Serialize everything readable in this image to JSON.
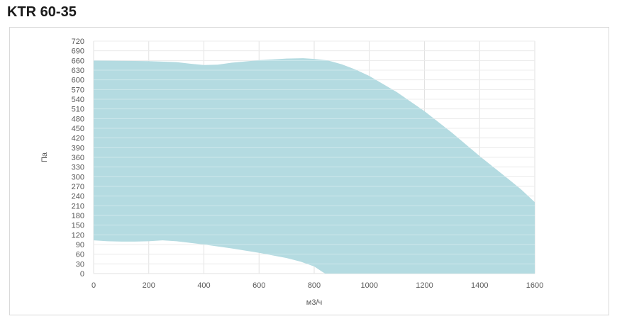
{
  "title": "KTR 60-35",
  "chart_data": {
    "type": "area",
    "xlabel": "м3/ч",
    "ylabel": "Па",
    "xlim": [
      0,
      1600
    ],
    "ylim": [
      0,
      720
    ],
    "x_ticks": [
      0,
      200,
      400,
      600,
      800,
      1000,
      1200,
      1400,
      1600
    ],
    "y_ticks": [
      0,
      30,
      60,
      90,
      120,
      150,
      180,
      210,
      240,
      270,
      300,
      330,
      360,
      390,
      420,
      450,
      480,
      510,
      540,
      570,
      600,
      630,
      660,
      690,
      720
    ],
    "grid": true,
    "fill_color": "#b4dbe1",
    "series": [
      {
        "role": "upper",
        "points": [
          [
            0,
            660
          ],
          [
            100,
            659
          ],
          [
            200,
            658
          ],
          [
            300,
            655
          ],
          [
            350,
            650
          ],
          [
            400,
            646
          ],
          [
            450,
            647
          ],
          [
            500,
            653
          ],
          [
            600,
            661
          ],
          [
            700,
            666
          ],
          [
            760,
            667
          ],
          [
            800,
            665
          ],
          [
            850,
            660
          ],
          [
            900,
            648
          ],
          [
            950,
            632
          ],
          [
            1000,
            612
          ],
          [
            1100,
            562
          ],
          [
            1200,
            503
          ],
          [
            1300,
            436
          ],
          [
            1400,
            364
          ],
          [
            1500,
            296
          ],
          [
            1550,
            261
          ],
          [
            1600,
            221
          ]
        ]
      },
      {
        "role": "lower",
        "points": [
          [
            0,
            103
          ],
          [
            50,
            100
          ],
          [
            100,
            99
          ],
          [
            150,
            99
          ],
          [
            200,
            100
          ],
          [
            250,
            103
          ],
          [
            300,
            100
          ],
          [
            400,
            90
          ],
          [
            500,
            78
          ],
          [
            600,
            64
          ],
          [
            700,
            48
          ],
          [
            750,
            37
          ],
          [
            800,
            22
          ],
          [
            830,
            5
          ],
          [
            840,
            0
          ]
        ]
      }
    ]
  }
}
